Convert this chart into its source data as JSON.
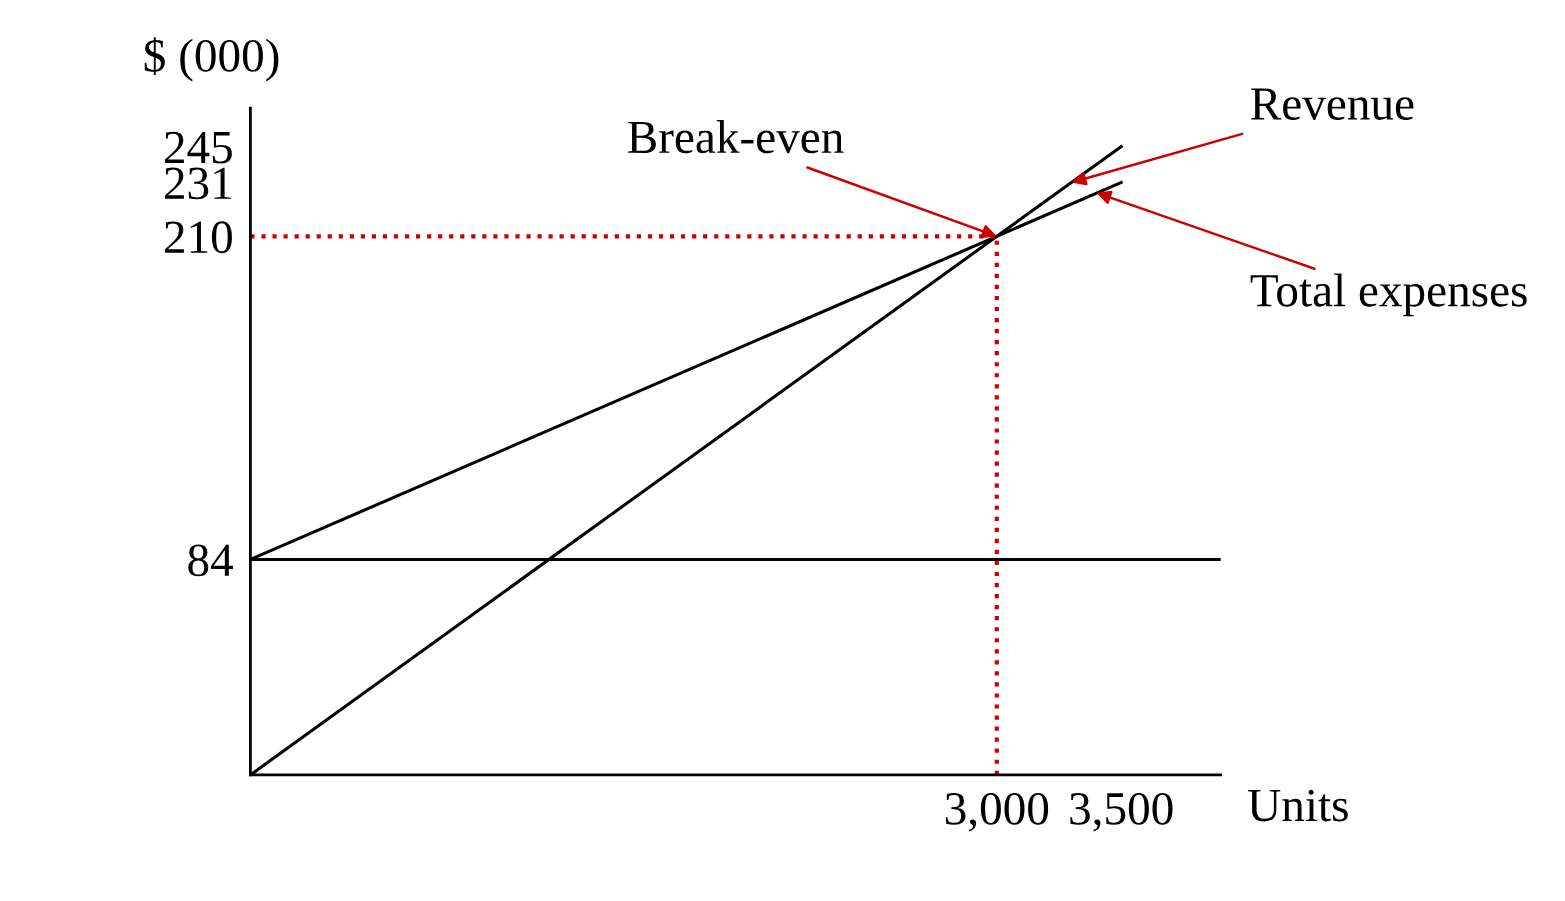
{
  "chart_data": {
    "type": "line",
    "xlabel": "Units",
    "ylabel": "$ (000)",
    "xlim": [
      0,
      3900
    ],
    "ylim": [
      0,
      260
    ],
    "xticks": [
      {
        "value": 3000,
        "label": "3,000"
      },
      {
        "value": 3500,
        "label": "3,500"
      }
    ],
    "yticks": [
      84,
      210,
      231,
      245
    ],
    "series": [
      {
        "color": "#000000",
        "x": [
          0,
          3000,
          3500
        ],
        "values": [
          0,
          210,
          245
        ]
      },
      {
        "color": "#000000",
        "x": [
          0,
          3000,
          3500
        ],
        "values": [
          84,
          210,
          231
        ]
      },
      {
        "color": "#000000",
        "x": [
          0,
          3900
        ],
        "values": [
          84,
          84
        ]
      },
      {
        "color": "#cc0000",
        "line_style": "dotted",
        "x": [
          0,
          3000
        ],
        "values": [
          210,
          210
        ]
      },
      {
        "color": "#cc0000",
        "line_style": "dotted",
        "x": [
          3000,
          3000
        ],
        "values": [
          0,
          210
        ]
      }
    ],
    "annotations": [
      {
        "text": "Revenue",
        "x": 3300,
        "y": 231
      },
      {
        "text": "Total expenses",
        "x": 3400,
        "y": 227
      },
      {
        "text": "Break-even",
        "x": 3000,
        "y": 210
      }
    ],
    "grid": false
  }
}
